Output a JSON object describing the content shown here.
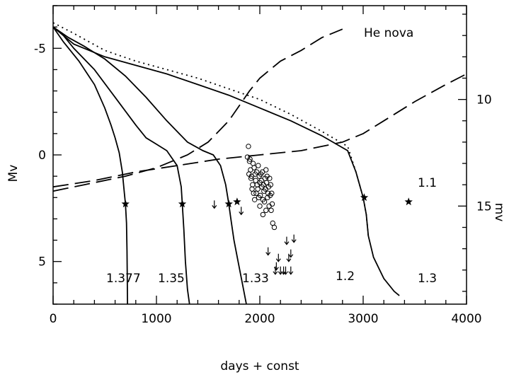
{
  "chart_data": {
    "type": "line",
    "title": "He nova",
    "xlabel": "days + const",
    "ylabel_left": "Mv",
    "ylabel_right": "mv",
    "xlim": [
      0,
      4000
    ],
    "ylim_left": [
      -7,
      7
    ],
    "ylim_right": [
      5.6,
      19.6
    ],
    "y_inverted": true,
    "grid": false,
    "x_ticks": [
      "0",
      "1000",
      "2000",
      "3000",
      "4000"
    ],
    "x_tick_values": [
      0,
      1000,
      2000,
      3000,
      4000
    ],
    "y_left_ticks": [
      "-5",
      "0",
      "5"
    ],
    "y_left_tick_values": [
      -5,
      0,
      5
    ],
    "y_right_ticks": [
      "10",
      "15"
    ],
    "y_right_tick_values": [
      10,
      15
    ],
    "series": [
      {
        "name": "1.377",
        "style": "solid",
        "points": [
          [
            0,
            -6.0
          ],
          [
            100,
            -5.3
          ],
          [
            250,
            -4.4
          ],
          [
            400,
            -3.3
          ],
          [
            500,
            -2.2
          ],
          [
            560,
            -1.4
          ],
          [
            600,
            -0.8
          ],
          [
            640,
            -0.1
          ],
          [
            670,
            0.8
          ],
          [
            690,
            1.8
          ],
          [
            700,
            2.3
          ],
          [
            710,
            3.2
          ],
          [
            715,
            4.5
          ],
          [
            718,
            5.8
          ],
          [
            720,
            7.0
          ]
        ],
        "star": [
          700,
          2.3
        ]
      },
      {
        "name": "1.35",
        "style": "solid",
        "points": [
          [
            0,
            -6.0
          ],
          [
            100,
            -5.6
          ],
          [
            200,
            -5.0
          ],
          [
            400,
            -4.0
          ],
          [
            600,
            -2.7
          ],
          [
            800,
            -1.4
          ],
          [
            900,
            -0.8
          ],
          [
            1000,
            -0.5
          ],
          [
            1100,
            -0.2
          ],
          [
            1200,
            0.5
          ],
          [
            1240,
            1.5
          ],
          [
            1250,
            2.3
          ],
          [
            1265,
            3.5
          ],
          [
            1280,
            5.0
          ],
          [
            1300,
            6.3
          ],
          [
            1320,
            7.0
          ]
        ],
        "star": [
          1250,
          2.3
        ]
      },
      {
        "name": "1.33",
        "style": "solid",
        "points": [
          [
            0,
            -6.0
          ],
          [
            150,
            -5.5
          ],
          [
            300,
            -5.1
          ],
          [
            500,
            -4.5
          ],
          [
            700,
            -3.7
          ],
          [
            900,
            -2.7
          ],
          [
            1100,
            -1.6
          ],
          [
            1300,
            -0.6
          ],
          [
            1450,
            -0.2
          ],
          [
            1550,
            0.0
          ],
          [
            1620,
            0.5
          ],
          [
            1670,
            1.4
          ],
          [
            1700,
            2.3
          ],
          [
            1720,
            3.0
          ],
          [
            1750,
            4.0
          ],
          [
            1790,
            5.0
          ],
          [
            1830,
            6.0
          ],
          [
            1870,
            7.0
          ]
        ],
        "star": [
          1700,
          2.3
        ]
      },
      {
        "name": "1.3",
        "style": "solid",
        "points": [
          [
            0,
            -6.0
          ],
          [
            200,
            -5.2
          ],
          [
            500,
            -4.6
          ],
          [
            800,
            -4.2
          ],
          [
            1100,
            -3.8
          ],
          [
            1400,
            -3.3
          ],
          [
            1700,
            -2.8
          ],
          [
            2000,
            -2.2
          ],
          [
            2300,
            -1.6
          ],
          [
            2600,
            -0.9
          ],
          [
            2850,
            -0.2
          ],
          [
            2930,
            0.8
          ],
          [
            3000,
            2.0
          ],
          [
            3030,
            2.8
          ],
          [
            3050,
            3.8
          ],
          [
            3100,
            4.8
          ],
          [
            3200,
            5.8
          ],
          [
            3300,
            6.4
          ],
          [
            3350,
            6.6
          ]
        ],
        "star": [
          3010,
          2.0
        ]
      },
      {
        "name": "1.1",
        "style": "dashed",
        "points": [
          [
            0,
            1.5
          ],
          [
            400,
            1.2
          ],
          [
            800,
            0.8
          ],
          [
            1200,
            0.5
          ],
          [
            1600,
            0.2
          ],
          [
            2000,
            0.0
          ],
          [
            2400,
            -0.2
          ],
          [
            2800,
            -0.6
          ],
          [
            3000,
            -1.0
          ],
          [
            3200,
            -1.6
          ],
          [
            3500,
            -2.5
          ],
          [
            3800,
            -3.3
          ],
          [
            4000,
            -3.8
          ]
        ],
        "star": [
          3440,
          2.2
        ]
      },
      {
        "name": "1.2",
        "style": "dashed",
        "points": [
          [
            0,
            1.7
          ],
          [
            300,
            1.4
          ],
          [
            700,
            1.0
          ],
          [
            1000,
            0.6
          ],
          [
            1300,
            0.0
          ],
          [
            1500,
            -0.6
          ],
          [
            1700,
            -1.6
          ],
          [
            1800,
            -2.3
          ],
          [
            1900,
            -3.0
          ],
          [
            2000,
            -3.6
          ],
          [
            2200,
            -4.4
          ],
          [
            2400,
            -4.9
          ],
          [
            2600,
            -5.5
          ],
          [
            2800,
            -5.9
          ]
        ],
        "star": [
          1780,
          2.2
        ]
      },
      {
        "name": "",
        "style": "dotted",
        "points": [
          [
            0,
            -6.2
          ],
          [
            200,
            -5.7
          ],
          [
            500,
            -4.9
          ],
          [
            800,
            -4.4
          ],
          [
            1100,
            -4.0
          ],
          [
            1400,
            -3.6
          ],
          [
            1700,
            -3.1
          ],
          [
            2000,
            -2.6
          ],
          [
            2300,
            -1.9
          ],
          [
            2600,
            -1.1
          ],
          [
            2850,
            -0.4
          ],
          [
            2930,
            0.8
          ],
          [
            3000,
            2.0
          ],
          [
            3030,
            2.8
          ],
          [
            3050,
            3.8
          ]
        ]
      }
    ],
    "observations": {
      "marker": "open-circle",
      "points": [
        [
          1880,
          0.1
        ],
        [
          1890,
          -0.4
        ],
        [
          1900,
          0.3
        ],
        [
          1910,
          0.7
        ],
        [
          1920,
          1.0
        ],
        [
          1930,
          1.4
        ],
        [
          1940,
          1.8
        ],
        [
          1950,
          2.1
        ],
        [
          1960,
          1.2
        ],
        [
          1970,
          0.8
        ],
        [
          1980,
          1.6
        ],
        [
          1990,
          2.0
        ],
        [
          2000,
          1.3
        ],
        [
          2010,
          0.9
        ],
        [
          2020,
          1.5
        ],
        [
          2030,
          2.1
        ],
        [
          2040,
          1.7
        ],
        [
          2050,
          1.1
        ],
        [
          2060,
          0.7
        ],
        [
          2070,
          1.0
        ],
        [
          2080,
          1.8
        ],
        [
          2090,
          2.4
        ],
        [
          2100,
          1.9
        ],
        [
          2110,
          2.6
        ],
        [
          2120,
          2.3
        ],
        [
          1895,
          0.9
        ],
        [
          1915,
          1.1
        ],
        [
          1925,
          1.6
        ],
        [
          1945,
          0.6
        ],
        [
          1955,
          0.9
        ],
        [
          1965,
          1.8
        ],
        [
          1975,
          1.4
        ],
        [
          1985,
          0.5
        ],
        [
          1995,
          1.0
        ],
        [
          2005,
          1.9
        ],
        [
          2015,
          1.2
        ],
        [
          2025,
          0.8
        ],
        [
          2035,
          1.4
        ],
        [
          2045,
          2.2
        ],
        [
          2055,
          1.6
        ],
        [
          2065,
          1.3
        ],
        [
          2075,
          2.0
        ],
        [
          2085,
          1.5
        ],
        [
          2095,
          1.1
        ],
        [
          2105,
          1.4
        ],
        [
          2115,
          1.8
        ],
        [
          2125,
          3.2
        ],
        [
          2140,
          3.4
        ],
        [
          1905,
          0.2
        ],
        [
          1935,
          0.4
        ],
        [
          2000,
          2.4
        ],
        [
          2030,
          2.8
        ],
        [
          2060,
          2.6
        ]
      ]
    },
    "upper_limits": {
      "marker": "down-arrow",
      "points": [
        [
          1560,
          2.5
        ],
        [
          1820,
          2.8
        ],
        [
          2080,
          4.7
        ],
        [
          2160,
          5.4
        ],
        [
          2180,
          5.0
        ],
        [
          2200,
          5.6
        ],
        [
          2250,
          5.6
        ],
        [
          2260,
          4.2
        ],
        [
          2280,
          5.0
        ],
        [
          2300,
          4.8
        ],
        [
          2300,
          5.6
        ],
        [
          2330,
          4.1
        ],
        [
          2150,
          5.6
        ],
        [
          2230,
          5.6
        ]
      ]
    }
  }
}
